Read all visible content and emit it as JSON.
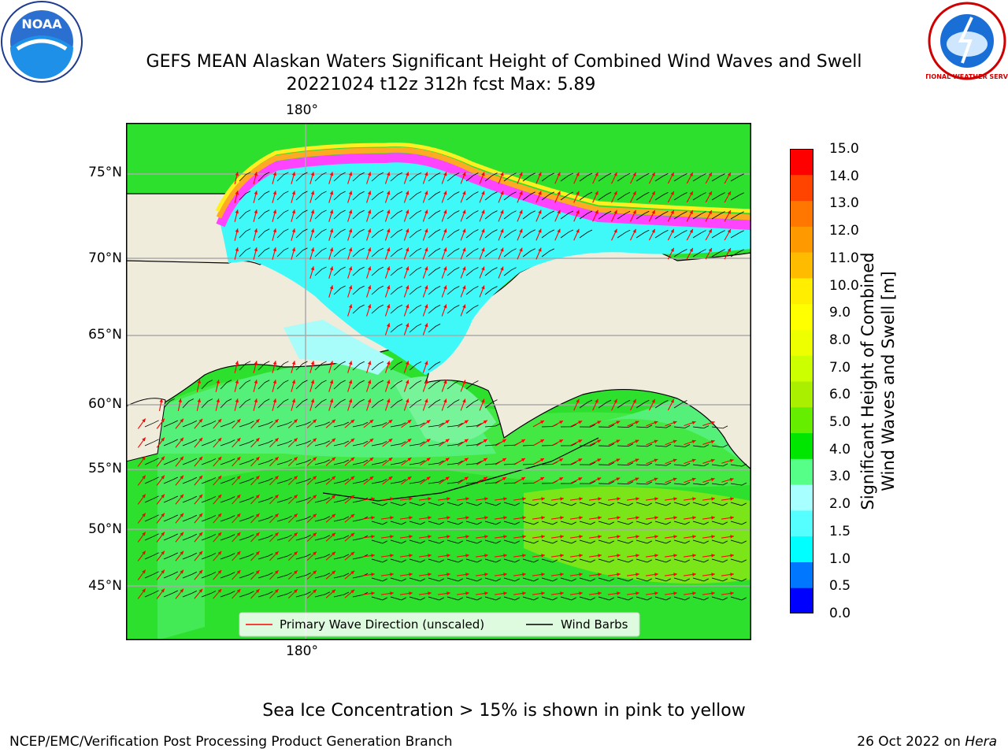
{
  "title": {
    "line1": "GEFS MEAN Alaskan Waters Significant Height of Combined Wind Waves and Swell",
    "line2": "20221024 t12z 312h fcst   Max: 5.89"
  },
  "map": {
    "lon_label_top": "180°",
    "lon_label_bottom": "180°",
    "lat_labels": [
      "75°N",
      "70°N",
      "65°N",
      "60°N",
      "55°N",
      "50°N",
      "45°N"
    ],
    "colors": {
      "land": "#efecdc",
      "ocean_green": "#2de02d",
      "ocean_light_green": "#55f07a",
      "ocean_lime": "#7ae61a",
      "ice_cyan": "#3ff9f9",
      "ice_light": "#a8fcfa",
      "ice_magenta": "#ff44ff",
      "ice_orange": "#ffaa22",
      "ice_yellow": "#ffee22",
      "wave_arrow": "#ff0000",
      "wind_barb": "#000000",
      "grid": "#aaaaaa"
    }
  },
  "legend": {
    "wave_direction": "Primary Wave Direction (unscaled)",
    "wind_barbs": "Wind Barbs"
  },
  "colorbar": {
    "ticks": [
      "15.0",
      "14.0",
      "13.0",
      "12.0",
      "11.0",
      "10.0",
      "9.0",
      "8.0",
      "7.0",
      "6.0",
      "5.0",
      "4.0",
      "3.0",
      "2.0",
      "1.5",
      "1.0",
      "0.5",
      "0.0"
    ],
    "colors": [
      "#0000ff",
      "#0077ff",
      "#00ffff",
      "#55ffff",
      "#a8ffff",
      "#55ff88",
      "#00e600",
      "#66ee00",
      "#aaee00",
      "#ccff00",
      "#eeff00",
      "#ffff00",
      "#ffee00",
      "#ffbb00",
      "#ff9900",
      "#ff7700",
      "#ff4400",
      "#ff0000"
    ],
    "label_line1": "Significant Height of Combined",
    "label_line2": "Wind Waves and Swell [m]"
  },
  "logos": {
    "left": "NOAA",
    "right": "NATIONAL WEATHER SERVICE"
  },
  "note": "Sea Ice Concentration > 15% is shown in pink to yellow",
  "footer": {
    "left": "NCEP/EMC/Verification Post Processing Product Generation Branch",
    "right_prefix": "26 Oct 2022 on ",
    "right_host": "Hera"
  }
}
